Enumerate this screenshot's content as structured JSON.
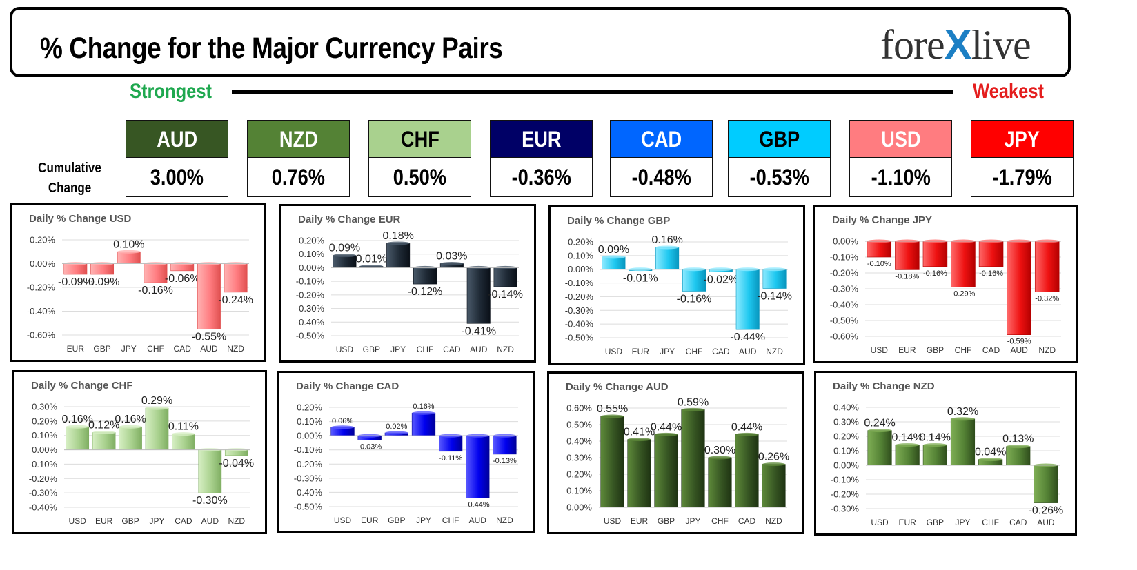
{
  "header": {
    "title": "% Change for the Major Currency Pairs",
    "logo": {
      "prefix": "fore",
      "x": "X",
      "suffix": "live"
    }
  },
  "ranking": {
    "strongest_label": "Strongest",
    "weakest_label": "Weakest",
    "cumulative_label_line1": "Cumulative",
    "cumulative_label_line2": "Change",
    "currencies": [
      {
        "code": "AUD",
        "value": "3.00%",
        "bg": "#375623",
        "fg": "#ffffff"
      },
      {
        "code": "NZD",
        "value": "0.76%",
        "bg": "#548235",
        "fg": "#ffffff"
      },
      {
        "code": "CHF",
        "value": "0.50%",
        "bg": "#a9d18e",
        "fg": "#000000"
      },
      {
        "code": "EUR",
        "value": "-0.36%",
        "bg": "#000066",
        "fg": "#ffffff"
      },
      {
        "code": "CAD",
        "value": "-0.48%",
        "bg": "#0066ff",
        "fg": "#ffffff"
      },
      {
        "code": "GBP",
        "value": "-0.53%",
        "bg": "#00ccff",
        "fg": "#000000"
      },
      {
        "code": "USD",
        "value": "-1.10%",
        "bg": "#ff7c80",
        "fg": "#ffffff"
      },
      {
        "code": "JPY",
        "value": "-1.79%",
        "bg": "#ff0000",
        "fg": "#ffffff"
      }
    ]
  },
  "chart_data": [
    {
      "type": "bar",
      "title": "Daily % Change USD",
      "categories": [
        "EUR",
        "GBP",
        "JPY",
        "CHF",
        "CAD",
        "AUD",
        "NZD"
      ],
      "values": [
        -0.09,
        -0.09,
        0.1,
        -0.16,
        -0.06,
        -0.55,
        -0.24
      ],
      "labels": [
        "-0.09%",
        "-0.09%",
        "0.10%",
        "-0.16%",
        "-0.06%",
        "-0.55%",
        "-0.24%"
      ],
      "yticks": [
        0.2,
        0.0,
        -0.2,
        -0.4,
        -0.6
      ],
      "ylim": [
        -0.6,
        0.2
      ],
      "tick_decimals": 2,
      "label_size": "large",
      "grid": true,
      "color": {
        "light": "#ffb3b3",
        "base": "#ff7c80",
        "dark": "#e05050"
      }
    },
    {
      "type": "bar",
      "title": "Daily % Change EUR",
      "categories": [
        "USD",
        "GBP",
        "JPY",
        "CHF",
        "CAD",
        "AUD",
        "NZD"
      ],
      "values": [
        0.09,
        0.01,
        0.18,
        -0.12,
        0.03,
        -0.41,
        -0.14
      ],
      "labels": [
        "0.09%",
        "0.01%",
        "0.18%",
        "-0.12%",
        "0.03%",
        "-0.41%",
        "-0.14%"
      ],
      "yticks": [
        0.2,
        0.1,
        0.0,
        -0.1,
        -0.2,
        -0.3,
        -0.4,
        -0.5
      ],
      "ylim": [
        -0.5,
        0.2
      ],
      "tick_decimals": 2,
      "label_size": "large",
      "grid": true,
      "color": {
        "light": "#4a5a6a",
        "base": "#1f2a36",
        "dark": "#0a1018"
      }
    },
    {
      "type": "bar",
      "title": "Daily % Change GBP",
      "categories": [
        "USD",
        "EUR",
        "JPY",
        "CHF",
        "CAD",
        "AUD",
        "NZD"
      ],
      "values": [
        0.09,
        -0.01,
        0.16,
        -0.16,
        -0.02,
        -0.44,
        -0.14
      ],
      "labels": [
        "0.09%",
        "-0.01%",
        "0.16%",
        "-0.16%",
        "-0.02%",
        "-0.44%",
        "-0.14%"
      ],
      "yticks": [
        0.2,
        0.1,
        0.0,
        -0.1,
        -0.2,
        -0.3,
        -0.4,
        -0.5
      ],
      "ylim": [
        -0.5,
        0.2
      ],
      "tick_decimals": 2,
      "label_size": "large",
      "grid": true,
      "color": {
        "light": "#8eeaff",
        "base": "#1ec8f0",
        "dark": "#0896be"
      }
    },
    {
      "type": "bar",
      "title": "Daily % Change JPY",
      "categories": [
        "USD",
        "EUR",
        "GBP",
        "CHF",
        "CAD",
        "AUD",
        "NZD"
      ],
      "values": [
        -0.1,
        -0.18,
        -0.16,
        -0.29,
        -0.16,
        -0.59,
        -0.32
      ],
      "labels": [
        "-0.10%",
        "-0.18%",
        "-0.16%",
        "-0.29%",
        "-0.16%",
        "-0.59%",
        "-0.32%"
      ],
      "yticks": [
        0.0,
        -0.1,
        -0.2,
        -0.3,
        -0.4,
        -0.5,
        -0.6
      ],
      "ylim": [
        -0.6,
        0.0
      ],
      "tick_decimals": 2,
      "label_size": "small",
      "grid": true,
      "color": {
        "light": "#ff6a6a",
        "base": "#ee1111",
        "dark": "#b30000"
      }
    },
    {
      "type": "bar",
      "title": "Daily % Change CHF",
      "categories": [
        "USD",
        "EUR",
        "GBP",
        "JPY",
        "CAD",
        "AUD",
        "NZD"
      ],
      "values": [
        0.16,
        0.12,
        0.16,
        0.29,
        0.11,
        -0.3,
        -0.04
      ],
      "labels": [
        "0.16%",
        "0.12%",
        "0.16%",
        "0.29%",
        "0.11%",
        "-0.30%",
        "-0.04%"
      ],
      "yticks": [
        0.3,
        0.2,
        0.1,
        0.0,
        -0.1,
        -0.2,
        -0.3,
        -0.4
      ],
      "ylim": [
        -0.4,
        0.3
      ],
      "tick_decimals": 2,
      "label_size": "large",
      "grid": true,
      "color": {
        "light": "#d7efc4",
        "base": "#a9d18e",
        "dark": "#7fae62"
      }
    },
    {
      "type": "bar",
      "title": "Daily % Change CAD",
      "categories": [
        "USD",
        "EUR",
        "GBP",
        "JPY",
        "CHF",
        "AUD",
        "NZD"
      ],
      "values": [
        0.06,
        -0.03,
        0.02,
        0.16,
        -0.11,
        -0.44,
        -0.13
      ],
      "labels": [
        "0.06%",
        "-0.03%",
        "0.02%",
        "0.16%",
        "-0.11%",
        "-0.44%",
        "-0.13%"
      ],
      "yticks": [
        0.2,
        0.1,
        0.0,
        -0.1,
        -0.2,
        -0.3,
        -0.4,
        -0.5
      ],
      "ylim": [
        -0.5,
        0.2
      ],
      "tick_decimals": 2,
      "label_size": "small",
      "grid": true,
      "color": {
        "light": "#5a5aff",
        "base": "#0000ee",
        "dark": "#00009a"
      }
    },
    {
      "type": "bar",
      "title": "Daily % Change AUD",
      "categories": [
        "USD",
        "EUR",
        "GBP",
        "JPY",
        "CHF",
        "CAD",
        "NZD"
      ],
      "values": [
        0.55,
        0.41,
        0.44,
        0.59,
        0.3,
        0.44,
        0.26
      ],
      "labels": [
        "0.55%",
        "0.41%",
        "0.44%",
        "0.59%",
        "0.30%",
        "0.44%",
        "0.26%"
      ],
      "yticks": [
        0.6,
        0.5,
        0.4,
        0.3,
        0.2,
        0.1,
        0.0
      ],
      "ylim": [
        0.0,
        0.6
      ],
      "tick_decimals": 2,
      "label_size": "large",
      "grid": true,
      "color": {
        "light": "#5e8a3a",
        "base": "#375623",
        "dark": "#1e3312"
      }
    },
    {
      "type": "bar",
      "title": "Daily % Change NZD",
      "categories": [
        "USD",
        "EUR",
        "GBP",
        "JPY",
        "CHF",
        "CAD",
        "AUD"
      ],
      "values": [
        0.24,
        0.14,
        0.14,
        0.32,
        0.04,
        0.13,
        -0.26
      ],
      "labels": [
        "0.24%",
        "0.14%",
        "0.14%",
        "0.32%",
        "0.04%",
        "0.13%",
        "-0.26%"
      ],
      "yticks": [
        0.4,
        0.3,
        0.2,
        0.1,
        0.0,
        -0.1,
        -0.2,
        -0.3
      ],
      "ylim": [
        -0.3,
        0.4
      ],
      "tick_decimals": 2,
      "label_size": "large",
      "grid": true,
      "color": {
        "light": "#7fae55",
        "base": "#548235",
        "dark": "#2f4d1c"
      }
    }
  ]
}
